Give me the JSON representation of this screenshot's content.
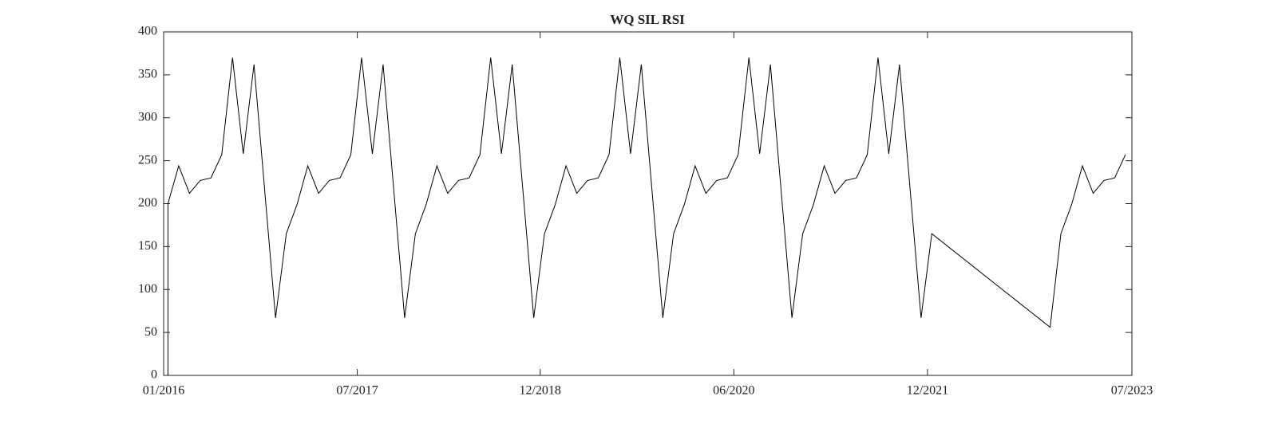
{
  "chart_data": {
    "type": "line",
    "title": "WQ SIL RSI",
    "x": [
      "01/2016",
      "01/2016",
      "02/2016",
      "03/2016",
      "04/2016",
      "05/2016",
      "06/2016",
      "07/2016",
      "08/2016",
      "09/2016",
      "11/2016",
      "12/2016",
      "01/2017",
      "02/2017",
      "03/2017",
      "04/2017",
      "05/2017",
      "06/2017",
      "07/2017",
      "08/2017",
      "09/2017",
      "11/2017",
      "12/2017",
      "01/2018",
      "02/2018",
      "03/2018",
      "04/2018",
      "05/2018",
      "06/2018",
      "07/2018",
      "08/2018",
      "09/2018",
      "11/2018",
      "12/2018",
      "01/2019",
      "02/2019",
      "03/2019",
      "04/2019",
      "05/2019",
      "06/2019",
      "07/2019",
      "08/2019",
      "09/2019",
      "11/2019",
      "12/2019",
      "01/2020",
      "02/2020",
      "03/2020",
      "04/2020",
      "05/2020",
      "06/2020",
      "07/2020",
      "08/2020",
      "09/2020",
      "11/2020",
      "12/2020",
      "01/2021",
      "02/2021",
      "03/2021",
      "04/2021",
      "05/2021",
      "06/2021",
      "07/2021",
      "08/2021",
      "09/2021",
      "11/2021",
      "12/2021",
      "11/2022",
      "12/2022",
      "01/2023",
      "02/2023",
      "03/2023",
      "04/2023",
      "05/2023",
      "06/2023"
    ],
    "values": [
      0,
      200,
      244,
      212,
      227,
      230,
      257,
      370,
      258,
      362,
      67,
      165,
      199,
      244,
      212,
      227,
      230,
      257,
      370,
      258,
      362,
      67,
      165,
      199,
      244,
      212,
      227,
      230,
      257,
      370,
      258,
      362,
      67,
      165,
      199,
      244,
      212,
      227,
      230,
      257,
      370,
      258,
      362,
      67,
      165,
      199,
      244,
      212,
      227,
      230,
      257,
      370,
      258,
      362,
      67,
      165,
      199,
      244,
      212,
      227,
      230,
      257,
      370,
      258,
      362,
      67,
      165,
      56,
      165,
      199,
      244,
      212,
      227,
      230,
      257
    ],
    "color": "#000000",
    "xlim": [
      "01/2016",
      "07/2023"
    ],
    "xticks": [
      "01/2016",
      "07/2017",
      "12/2018",
      "06/2020",
      "12/2021",
      "07/2023"
    ],
    "ylim": [
      0,
      400
    ],
    "yticks": [
      0,
      50,
      100,
      150,
      200,
      250,
      300,
      350,
      400
    ]
  }
}
